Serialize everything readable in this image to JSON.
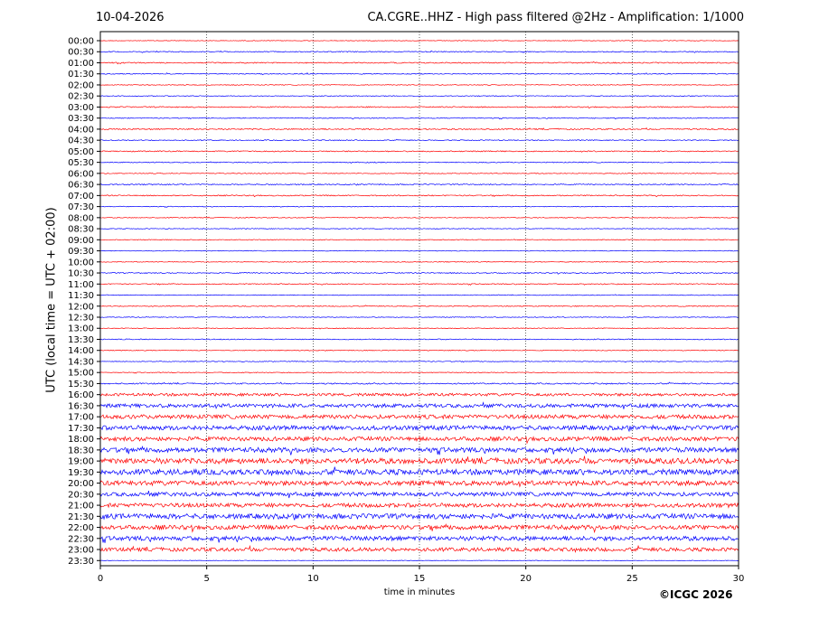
{
  "header": {
    "date": "10-04-2026",
    "title": "CA.CGRE..HHZ - High pass filtered @2Hz - Amplification: 1/1000"
  },
  "footer": {
    "copyright": "©ICGC 2026"
  },
  "chart_data": {
    "type": "line",
    "title": "CA.CGRE..HHZ - High pass filtered @2Hz - Amplification: 1/1000",
    "xlabel": "time in minutes",
    "ylabel": "UTC (local time = UTC + 02:00)",
    "xlim": [
      0,
      30
    ],
    "x_ticks": [
      0,
      5,
      10,
      15,
      20,
      25,
      30
    ],
    "grid": "vertical dotted lines at 5-minute intervals",
    "trace_colors": [
      "#ff0000",
      "#0000ff"
    ],
    "rows": [
      {
        "label": "00:00",
        "amp": 0.3
      },
      {
        "label": "00:30",
        "amp": 0.5
      },
      {
        "label": "01:00",
        "amp": 0.6
      },
      {
        "label": "01:30",
        "amp": 0.5
      },
      {
        "label": "02:00",
        "amp": 0.4
      },
      {
        "label": "02:30",
        "amp": 0.4
      },
      {
        "label": "03:00",
        "amp": 0.6
      },
      {
        "label": "03:30",
        "amp": 0.5
      },
      {
        "label": "04:00",
        "amp": 0.7
      },
      {
        "label": "04:30",
        "amp": 0.5
      },
      {
        "label": "05:00",
        "amp": 0.6
      },
      {
        "label": "05:30",
        "amp": 0.5
      },
      {
        "label": "06:00",
        "amp": 0.4
      },
      {
        "label": "06:30",
        "amp": 0.6
      },
      {
        "label": "07:00",
        "amp": 0.6
      },
      {
        "label": "07:30",
        "amp": 0.4
      },
      {
        "label": "08:00",
        "amp": 0.4
      },
      {
        "label": "08:30",
        "amp": 0.4
      },
      {
        "label": "09:00",
        "amp": 0.4
      },
      {
        "label": "09:30",
        "amp": 0.4
      },
      {
        "label": "10:00",
        "amp": 0.4
      },
      {
        "label": "10:30",
        "amp": 0.6
      },
      {
        "label": "11:00",
        "amp": 0.5
      },
      {
        "label": "11:30",
        "amp": 0.4
      },
      {
        "label": "12:00",
        "amp": 0.5
      },
      {
        "label": "12:30",
        "amp": 0.4
      },
      {
        "label": "13:00",
        "amp": 0.4
      },
      {
        "label": "13:30",
        "amp": 0.5
      },
      {
        "label": "14:00",
        "amp": 0.4
      },
      {
        "label": "14:30",
        "amp": 0.4
      },
      {
        "label": "15:00",
        "amp": 0.4
      },
      {
        "label": "15:30",
        "amp": 0.7
      },
      {
        "label": "16:00",
        "amp": 1.5
      },
      {
        "label": "16:30",
        "amp": 2.0
      },
      {
        "label": "17:00",
        "amp": 2.2
      },
      {
        "label": "17:30",
        "amp": 2.4
      },
      {
        "label": "18:00",
        "amp": 2.3
      },
      {
        "label": "18:30",
        "amp": 2.6
      },
      {
        "label": "19:00",
        "amp": 3.0
      },
      {
        "label": "19:30",
        "amp": 3.0
      },
      {
        "label": "20:00",
        "amp": 2.6
      },
      {
        "label": "20:30",
        "amp": 2.2
      },
      {
        "label": "21:00",
        "amp": 2.2
      },
      {
        "label": "21:30",
        "amp": 2.8
      },
      {
        "label": "22:00",
        "amp": 2.4
      },
      {
        "label": "22:30",
        "amp": 2.4
      },
      {
        "label": "23:00",
        "amp": 2.0
      },
      {
        "label": "23:30",
        "amp": 0.3
      }
    ]
  }
}
